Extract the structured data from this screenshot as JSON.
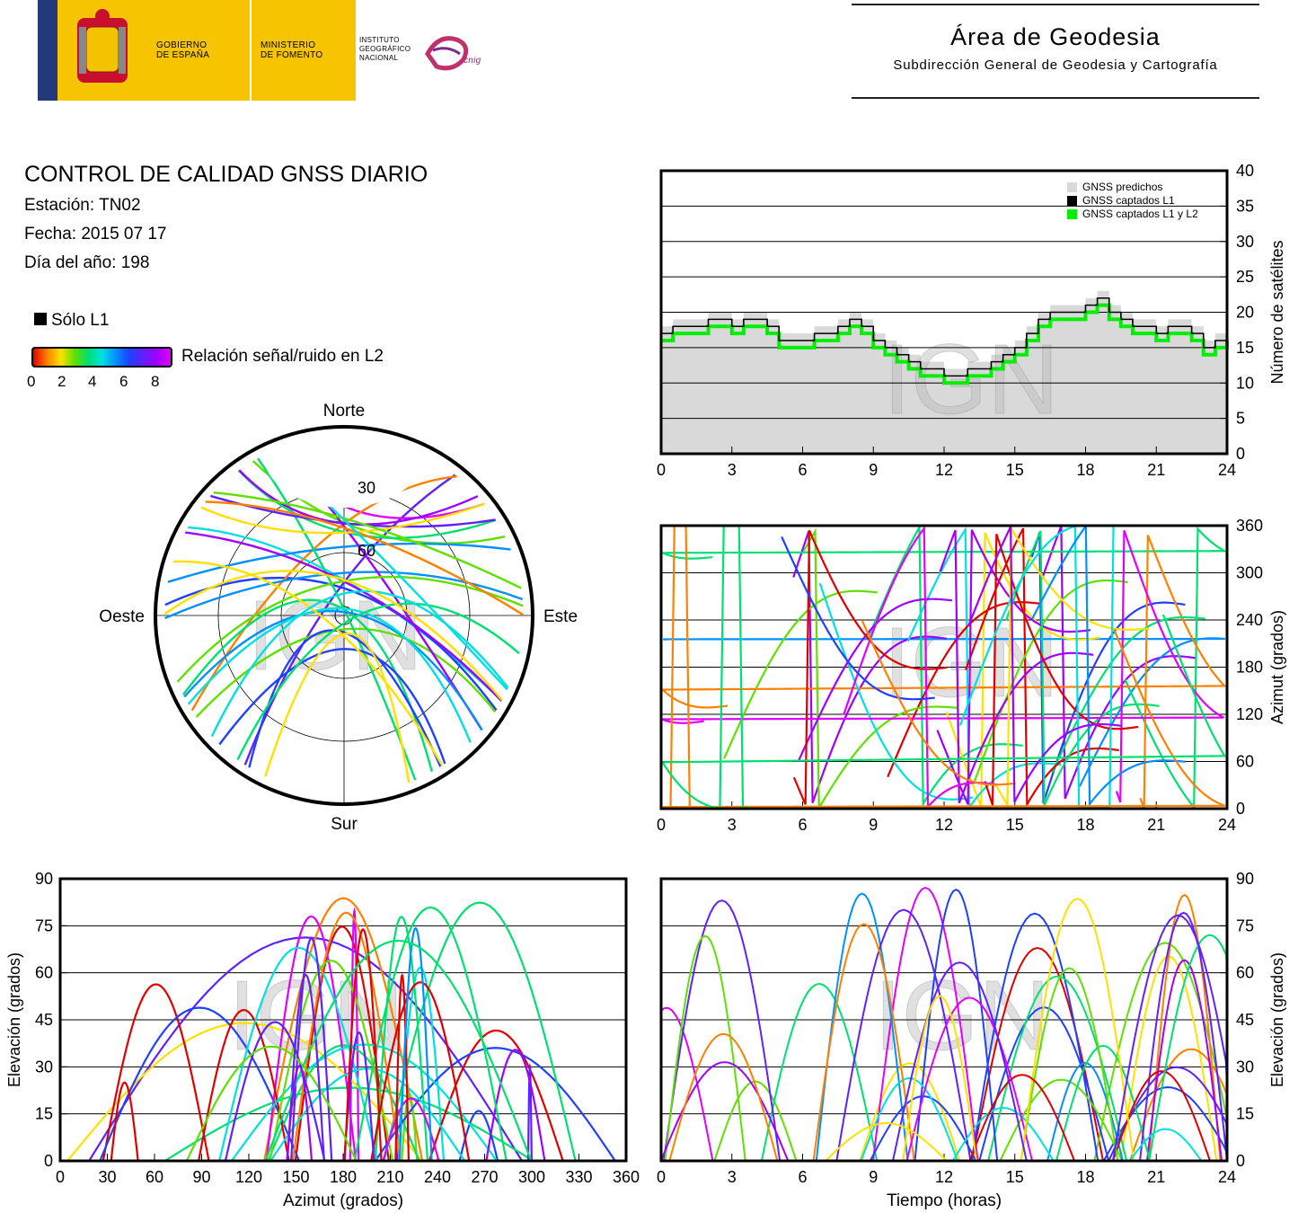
{
  "header": {
    "gov_label": "GOBIERNO\nDE ESPAÑA",
    "ministry_label": "MINISTERIO\nDE FOMENTO",
    "institute_label": "INSTITUTO\nGEOGRÁFICO\nNACIONAL",
    "cnig_label": "cnig",
    "area_title": "Área de Geodesia",
    "area_subtitle": "Subdirección General de Geodesia y Cartografía"
  },
  "report": {
    "title": "CONTROL DE CALIDAD GNSS DIARIO",
    "station": "Estación: TN02",
    "date": "Fecha: 2015 07 17",
    "doy": "Día del año: 198"
  },
  "legend": {
    "l1_only": "Sólo L1",
    "snr_label": "Relación señal/ruido en L2",
    "snr_ticks": [
      "0",
      "2",
      "4",
      "6",
      "8"
    ]
  },
  "watermark": "IGN",
  "colors": {
    "predicted": "#d9d9d9",
    "l1": "#000000",
    "l1l2": "#00ee00",
    "snr_scale": [
      "#e00000",
      "#ff8000",
      "#ffe000",
      "#60e000",
      "#00e070",
      "#00e0e0",
      "#0090ff",
      "#2040ff",
      "#6020ff",
      "#a000ff",
      "#e000ff"
    ]
  },
  "chart_data": [
    {
      "type": "line",
      "id": "satellite-count",
      "ylabel": "Número de satélites",
      "xlim": [
        0,
        24
      ],
      "ylim": [
        0,
        40
      ],
      "xticks": [
        "0",
        "3",
        "6",
        "9",
        "12",
        "15",
        "18",
        "21",
        "24"
      ],
      "yticks": [
        "0",
        "5",
        "10",
        "15",
        "20",
        "25",
        "30",
        "35",
        "40"
      ],
      "legend": [
        "GNSS predichos",
        "GNSS captados L1",
        "GNSS captados L1 y L2"
      ],
      "legend_position": "top-right",
      "grid": "horizontal",
      "x": [
        0,
        0.5,
        1,
        1.5,
        2,
        2.5,
        3,
        3.5,
        4,
        4.5,
        5,
        5.5,
        6,
        6.5,
        7,
        7.5,
        8,
        8.5,
        9,
        9.5,
        10,
        10.5,
        11,
        11.5,
        12,
        12.5,
        13,
        13.5,
        14,
        14.5,
        15,
        15.5,
        16,
        16.5,
        17,
        17.5,
        18,
        18.5,
        19,
        19.5,
        20,
        20.5,
        21,
        21.5,
        22,
        22.5,
        23,
        23.5,
        24
      ],
      "series": [
        {
          "name": "GNSS predichos",
          "values": [
            18,
            19,
            19,
            19,
            20,
            20,
            19,
            20,
            20,
            19,
            17,
            17,
            17,
            18,
            18,
            19,
            20,
            19,
            17,
            16,
            15,
            14,
            13,
            13,
            12,
            12,
            13,
            13,
            14,
            15,
            16,
            18,
            20,
            21,
            21,
            21,
            22,
            23,
            21,
            20,
            19,
            19,
            18,
            19,
            19,
            18,
            16,
            17,
            18
          ]
        },
        {
          "name": "GNSS captados L1",
          "values": [
            17,
            18,
            18,
            18,
            19,
            19,
            18,
            19,
            19,
            18,
            16,
            16,
            16,
            17,
            17,
            18,
            19,
            18,
            16,
            15,
            14,
            13,
            12,
            12,
            11,
            11,
            12,
            12,
            13,
            14,
            15,
            17,
            19,
            20,
            20,
            20,
            21,
            22,
            20,
            19,
            18,
            18,
            17,
            18,
            18,
            17,
            15,
            16,
            17
          ]
        },
        {
          "name": "GNSS captados L1 y L2",
          "values": [
            16,
            17,
            17,
            17,
            18,
            18,
            17,
            18,
            18,
            17,
            15,
            15,
            15,
            16,
            16,
            17,
            18,
            17,
            15,
            14,
            13,
            12,
            11,
            11,
            10,
            10,
            11,
            11,
            12,
            13,
            14,
            16,
            18,
            19,
            19,
            19,
            20,
            21,
            19,
            18,
            17,
            17,
            16,
            17,
            17,
            16,
            14,
            15,
            16
          ]
        }
      ]
    },
    {
      "type": "scatter",
      "id": "azimuth-time",
      "ylabel": "Azimut (grados)",
      "xlim": [
        0,
        24
      ],
      "ylim": [
        0,
        360
      ],
      "xticks": [
        "0",
        "3",
        "6",
        "9",
        "12",
        "15",
        "18",
        "21",
        "24"
      ],
      "yticks": [
        "0",
        "60",
        "120",
        "180",
        "240",
        "300",
        "360"
      ],
      "grid": "horizontal"
    },
    {
      "type": "scatter",
      "id": "skyplot",
      "directions": [
        "Norte",
        "Sur",
        "Este",
        "Oeste"
      ],
      "ring_labels": [
        "30",
        "60"
      ]
    },
    {
      "type": "scatter",
      "id": "elevation-azimuth",
      "xlabel": "Azimut (grados)",
      "ylabel": "Elevación (grados)",
      "xlim": [
        0,
        360
      ],
      "ylim": [
        0,
        90
      ],
      "xticks": [
        "0",
        "30",
        "60",
        "90",
        "120",
        "150",
        "180",
        "210",
        "240",
        "270",
        "300",
        "330",
        "360"
      ],
      "yticks": [
        "0",
        "15",
        "30",
        "45",
        "60",
        "75",
        "90"
      ],
      "grid": "horizontal"
    },
    {
      "type": "scatter",
      "id": "elevation-time",
      "xlabel": "Tiempo (horas)",
      "ylabel": "Elevación (grados)",
      "xlim": [
        0,
        24
      ],
      "ylim": [
        0,
        90
      ],
      "xticks": [
        "0",
        "3",
        "6",
        "9",
        "12",
        "15",
        "18",
        "21",
        "24"
      ],
      "yticks": [
        "0",
        "15",
        "30",
        "45",
        "60",
        "75",
        "90"
      ],
      "grid": "horizontal"
    }
  ]
}
